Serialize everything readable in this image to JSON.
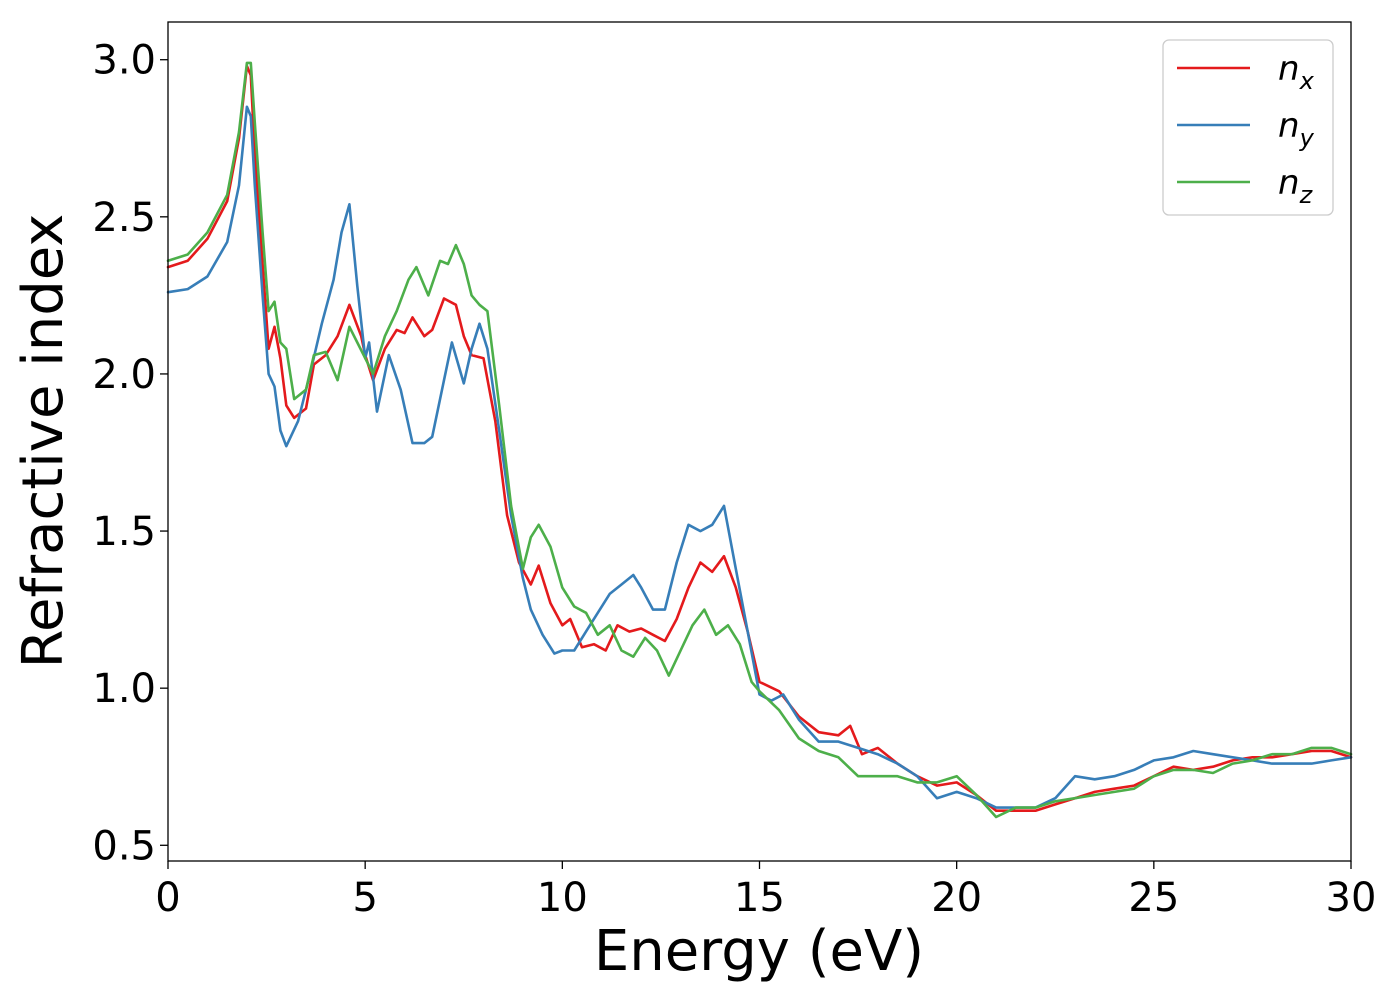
{
  "chart_data": {
    "type": "line",
    "xlabel": "Energy (eV)",
    "ylabel": "Refractive index",
    "xlim": [
      0,
      30
    ],
    "ylim": [
      0.45,
      3.12
    ],
    "xticks": [
      "0",
      "5",
      "10",
      "15",
      "20",
      "25",
      "30"
    ],
    "yticks": [
      "0.5",
      "1.0",
      "1.5",
      "2.0",
      "2.5",
      "3.0"
    ],
    "grid": false,
    "legend_position": "top-right",
    "series": [
      {
        "name": "n_x",
        "label_base": "n",
        "label_sub": "x",
        "color": "#e41a1c",
        "x": [
          0,
          0.5,
          1.0,
          1.5,
          1.8,
          2.0,
          2.1,
          2.2,
          2.4,
          2.55,
          2.7,
          2.85,
          3.0,
          3.2,
          3.5,
          3.7,
          4.0,
          4.3,
          4.6,
          4.9,
          5.0,
          5.2,
          5.5,
          5.8,
          6.0,
          6.2,
          6.5,
          6.7,
          7.0,
          7.3,
          7.5,
          7.7,
          8.0,
          8.3,
          8.6,
          8.9,
          9.2,
          9.4,
          9.7,
          10.0,
          10.2,
          10.5,
          10.8,
          11.1,
          11.4,
          11.7,
          12.0,
          12.3,
          12.6,
          12.9,
          13.2,
          13.5,
          13.8,
          14.1,
          14.4,
          14.7,
          15.0,
          15.5,
          16.0,
          16.5,
          17.0,
          17.3,
          17.6,
          18.0,
          18.5,
          19.0,
          19.5,
          20.0,
          20.5,
          21.0,
          21.5,
          22.0,
          22.5,
          23.0,
          23.5,
          24.0,
          24.5,
          25.0,
          25.5,
          26.0,
          26.5,
          27.0,
          27.5,
          28.0,
          28.5,
          29.0,
          29.5,
          30.0
        ],
        "y": [
          2.34,
          2.36,
          2.43,
          2.55,
          2.75,
          2.98,
          2.95,
          2.7,
          2.35,
          2.08,
          2.15,
          2.05,
          1.9,
          1.86,
          1.89,
          2.03,
          2.06,
          2.12,
          2.22,
          2.12,
          2.06,
          1.98,
          2.08,
          2.14,
          2.13,
          2.18,
          2.12,
          2.14,
          2.24,
          2.22,
          2.12,
          2.06,
          2.05,
          1.85,
          1.55,
          1.4,
          1.33,
          1.39,
          1.27,
          1.2,
          1.22,
          1.13,
          1.14,
          1.12,
          1.2,
          1.18,
          1.19,
          1.17,
          1.15,
          1.22,
          1.32,
          1.4,
          1.37,
          1.42,
          1.32,
          1.18,
          1.02,
          0.99,
          0.91,
          0.86,
          0.85,
          0.88,
          0.79,
          0.81,
          0.76,
          0.72,
          0.69,
          0.7,
          0.66,
          0.61,
          0.61,
          0.61,
          0.63,
          0.65,
          0.67,
          0.68,
          0.69,
          0.72,
          0.75,
          0.74,
          0.75,
          0.77,
          0.78,
          0.78,
          0.79,
          0.8,
          0.8,
          0.78
        ]
      },
      {
        "name": "n_y",
        "label_base": "n",
        "label_sub": "y",
        "color": "#377eb8",
        "x": [
          0,
          0.5,
          1.0,
          1.5,
          1.8,
          2.0,
          2.1,
          2.2,
          2.4,
          2.55,
          2.7,
          2.85,
          3.0,
          3.3,
          3.6,
          3.9,
          4.2,
          4.4,
          4.6,
          4.8,
          5.0,
          5.1,
          5.3,
          5.6,
          5.9,
          6.2,
          6.5,
          6.7,
          7.0,
          7.2,
          7.5,
          7.7,
          7.9,
          8.1,
          8.4,
          8.7,
          9.0,
          9.2,
          9.5,
          9.8,
          10.0,
          10.3,
          10.6,
          10.9,
          11.2,
          11.5,
          11.8,
          12.0,
          12.3,
          12.6,
          12.9,
          13.2,
          13.5,
          13.8,
          14.1,
          14.4,
          14.7,
          15.0,
          15.3,
          15.6,
          16.0,
          16.5,
          17.0,
          17.5,
          18.0,
          18.5,
          19.0,
          19.5,
          20.0,
          20.5,
          21.0,
          21.5,
          22.0,
          22.5,
          23.0,
          23.5,
          24.0,
          24.5,
          25.0,
          25.5,
          26.0,
          26.5,
          27.0,
          27.5,
          28.0,
          28.5,
          29.0,
          29.5,
          30.0
        ],
        "y": [
          2.26,
          2.27,
          2.31,
          2.42,
          2.6,
          2.85,
          2.82,
          2.6,
          2.25,
          2.0,
          1.96,
          1.82,
          1.77,
          1.85,
          2.0,
          2.16,
          2.3,
          2.45,
          2.54,
          2.28,
          2.05,
          2.1,
          1.88,
          2.06,
          1.95,
          1.78,
          1.78,
          1.8,
          1.98,
          2.1,
          1.97,
          2.08,
          2.16,
          2.08,
          1.82,
          1.55,
          1.35,
          1.25,
          1.17,
          1.11,
          1.12,
          1.12,
          1.18,
          1.24,
          1.3,
          1.33,
          1.36,
          1.32,
          1.25,
          1.25,
          1.4,
          1.52,
          1.5,
          1.52,
          1.58,
          1.38,
          1.18,
          0.98,
          0.96,
          0.98,
          0.9,
          0.83,
          0.83,
          0.81,
          0.79,
          0.76,
          0.72,
          0.65,
          0.67,
          0.65,
          0.62,
          0.62,
          0.62,
          0.65,
          0.72,
          0.71,
          0.72,
          0.74,
          0.77,
          0.78,
          0.8,
          0.79,
          0.78,
          0.77,
          0.76,
          0.76,
          0.76,
          0.77,
          0.78
        ]
      },
      {
        "name": "n_z",
        "label_base": "n",
        "label_sub": "z",
        "color": "#4daf4a",
        "x": [
          0,
          0.5,
          1.0,
          1.5,
          1.8,
          2.0,
          2.1,
          2.2,
          2.4,
          2.55,
          2.7,
          2.85,
          3.0,
          3.2,
          3.5,
          3.7,
          4.0,
          4.3,
          4.6,
          4.8,
          5.0,
          5.2,
          5.5,
          5.8,
          6.1,
          6.3,
          6.6,
          6.9,
          7.1,
          7.3,
          7.5,
          7.7,
          7.9,
          8.1,
          8.4,
          8.7,
          9.0,
          9.2,
          9.4,
          9.7,
          10.0,
          10.3,
          10.6,
          10.9,
          11.2,
          11.5,
          11.8,
          12.1,
          12.4,
          12.7,
          13.0,
          13.3,
          13.6,
          13.9,
          14.2,
          14.5,
          14.8,
          15.0,
          15.5,
          16.0,
          16.5,
          17.0,
          17.5,
          18.0,
          18.5,
          19.0,
          19.5,
          20.0,
          20.5,
          21.0,
          21.5,
          22.0,
          22.5,
          23.0,
          23.5,
          24.0,
          24.5,
          25.0,
          25.5,
          26.0,
          26.5,
          27.0,
          27.5,
          28.0,
          28.5,
          29.0,
          29.5,
          30.0
        ],
        "y": [
          2.36,
          2.38,
          2.45,
          2.57,
          2.77,
          2.99,
          2.99,
          2.8,
          2.45,
          2.2,
          2.23,
          2.1,
          2.08,
          1.92,
          1.95,
          2.06,
          2.07,
          1.98,
          2.15,
          2.1,
          2.05,
          2.0,
          2.12,
          2.2,
          2.3,
          2.34,
          2.25,
          2.36,
          2.35,
          2.41,
          2.35,
          2.25,
          2.22,
          2.2,
          1.9,
          1.58,
          1.38,
          1.48,
          1.52,
          1.45,
          1.32,
          1.26,
          1.24,
          1.17,
          1.2,
          1.12,
          1.1,
          1.16,
          1.12,
          1.04,
          1.12,
          1.2,
          1.25,
          1.17,
          1.2,
          1.14,
          1.02,
          0.99,
          0.93,
          0.84,
          0.8,
          0.78,
          0.72,
          0.72,
          0.72,
          0.7,
          0.7,
          0.72,
          0.66,
          0.59,
          0.62,
          0.62,
          0.64,
          0.65,
          0.66,
          0.67,
          0.68,
          0.72,
          0.74,
          0.74,
          0.73,
          0.76,
          0.77,
          0.79,
          0.79,
          0.81,
          0.81,
          0.79
        ]
      }
    ]
  }
}
